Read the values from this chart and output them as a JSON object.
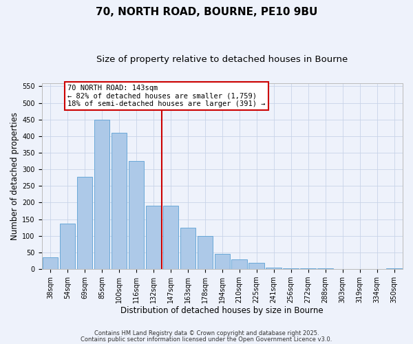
{
  "title": "70, NORTH ROAD, BOURNE, PE10 9BU",
  "subtitle": "Size of property relative to detached houses in Bourne",
  "xlabel": "Distribution of detached houses by size in Bourne",
  "ylabel": "Number of detached properties",
  "bar_labels": [
    "38sqm",
    "54sqm",
    "69sqm",
    "85sqm",
    "100sqm",
    "116sqm",
    "132sqm",
    "147sqm",
    "163sqm",
    "178sqm",
    "194sqm",
    "210sqm",
    "225sqm",
    "241sqm",
    "256sqm",
    "272sqm",
    "288sqm",
    "303sqm",
    "319sqm",
    "334sqm",
    "350sqm"
  ],
  "bar_values": [
    35,
    137,
    278,
    450,
    410,
    325,
    190,
    190,
    125,
    100,
    45,
    30,
    18,
    5,
    3,
    2,
    2,
    1,
    1,
    1,
    2
  ],
  "bar_color": "#adc9e8",
  "bar_edge_color": "#5a9fd4",
  "bg_color": "#eef2fb",
  "grid_color": "#c8d4e8",
  "vline_color": "#cc0000",
  "annotation_box_text": "70 NORTH ROAD: 143sqm\n← 82% of detached houses are smaller (1,759)\n18% of semi-detached houses are larger (391) →",
  "annotation_box_color": "#cc0000",
  "ylim": [
    0,
    560
  ],
  "yticks": [
    0,
    50,
    100,
    150,
    200,
    250,
    300,
    350,
    400,
    450,
    500,
    550
  ],
  "footer1": "Contains HM Land Registry data © Crown copyright and database right 2025.",
  "footer2": "Contains public sector information licensed under the Open Government Licence v3.0.",
  "title_fontsize": 11,
  "subtitle_fontsize": 9.5,
  "axis_label_fontsize": 8.5,
  "tick_fontsize": 7,
  "footer_fontsize": 6,
  "annot_fontsize": 7.5
}
